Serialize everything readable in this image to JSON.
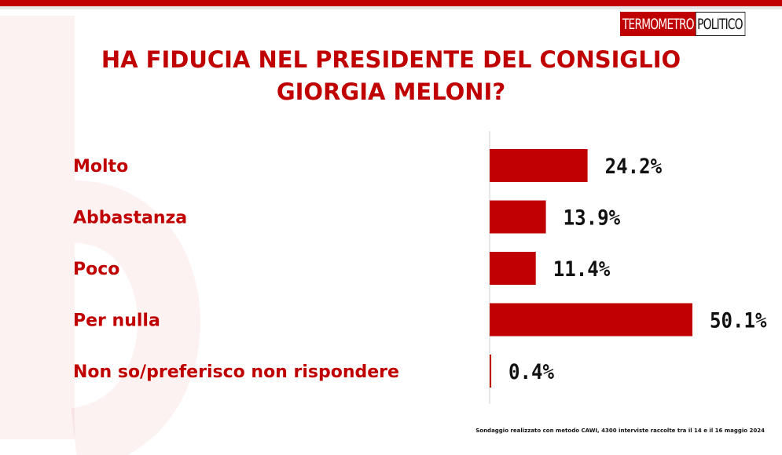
{
  "logo": {
    "part1": "TERMOMETRO",
    "part2": "POLITICO"
  },
  "title_line1": "HA FIDUCIA NEL PRESIDENTE DEL CONSIGLIO",
  "title_line2": "GIORGIA MELONI?",
  "colors": {
    "accent": "#c00000",
    "value_text": "#111111"
  },
  "chart_data": {
    "type": "bar",
    "orientation": "horizontal",
    "categories": [
      "Molto",
      "Abbastanza",
      "Poco",
      "Per nulla",
      "Non so/preferisco non rispondere"
    ],
    "values": [
      24.2,
      13.9,
      11.4,
      50.1,
      0.4
    ],
    "value_labels": [
      "24.2%",
      "13.9%",
      "11.4%",
      "50.1%",
      "0.4%"
    ],
    "xlim": [
      0,
      50.1
    ],
    "grid": false
  },
  "footnote": "Sondaggio realizzato con metodo CAWI, 4300 interviste raccolte tra il 14 e il 16 maggio 2024"
}
